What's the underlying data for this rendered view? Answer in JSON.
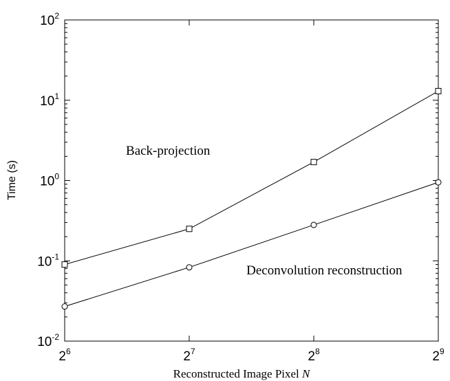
{
  "chart_data": {
    "type": "line",
    "x_scale": "log2",
    "y_scale": "log10",
    "x": [
      64,
      128,
      256,
      512
    ],
    "x_ticks": [
      {
        "base": "2",
        "exp": "6"
      },
      {
        "base": "2",
        "exp": "7"
      },
      {
        "base": "2",
        "exp": "8"
      },
      {
        "base": "2",
        "exp": "9"
      }
    ],
    "y_ticks": [
      {
        "base": "10",
        "exp": "-2"
      },
      {
        "base": "10",
        "exp": "-1"
      },
      {
        "base": "10",
        "exp": "0"
      },
      {
        "base": "10",
        "exp": "1"
      },
      {
        "base": "10",
        "exp": "2"
      }
    ],
    "xlim": [
      64,
      512
    ],
    "ylim": [
      0.01,
      100
    ],
    "xlabel": "Reconstructed Image Pixel",
    "xlabel_var": "N",
    "ylabel": "Time (s)",
    "grid": false,
    "series": [
      {
        "values": [
          0.09,
          0.25,
          1.7,
          13
        ],
        "marker": "square"
      },
      {
        "values": [
          0.027,
          0.083,
          0.28,
          0.95
        ],
        "marker": "circle"
      }
    ],
    "annotations": [
      {
        "text": "Back-projection",
        "x": 90,
        "y": 2.1
      },
      {
        "text": "Deconvolution reconstruction",
        "x": 176,
        "y": 0.068
      }
    ]
  }
}
